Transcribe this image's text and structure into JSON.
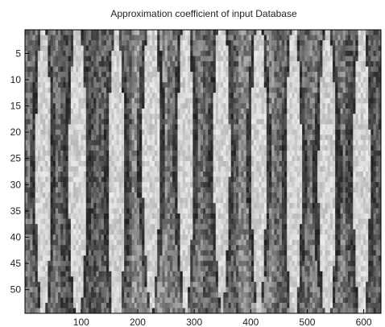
{
  "chart_data": {
    "type": "heatmap",
    "title": "Approximation coefficient of input Database",
    "xlabel": "",
    "ylabel": "",
    "xlim": [
      0.5,
      630.5
    ],
    "ylim": [
      0.5,
      54.5
    ],
    "y_reversed": true,
    "colormap": "gray",
    "x_ticks": [
      100,
      200,
      300,
      400,
      500,
      600
    ],
    "y_ticks": [
      5,
      10,
      15,
      20,
      25,
      30,
      35,
      40,
      45,
      50
    ],
    "x_tick_labels": [
      "100",
      "200",
      "300",
      "400",
      "500",
      "600"
    ],
    "y_tick_labels": [
      "5",
      "10",
      "15",
      "20",
      "25",
      "30",
      "35",
      "40",
      "45",
      "50"
    ],
    "image_size": {
      "rows": 54,
      "columns": 630
    },
    "tiles": 10,
    "columns_per_tile": 63,
    "tile_column_ranges": [
      [
        1,
        63
      ],
      [
        64,
        126
      ],
      [
        127,
        189
      ],
      [
        190,
        252
      ],
      [
        253,
        315
      ],
      [
        316,
        378
      ],
      [
        379,
        441
      ],
      [
        442,
        504
      ],
      [
        505,
        567
      ],
      [
        568,
        630
      ]
    ]
  }
}
